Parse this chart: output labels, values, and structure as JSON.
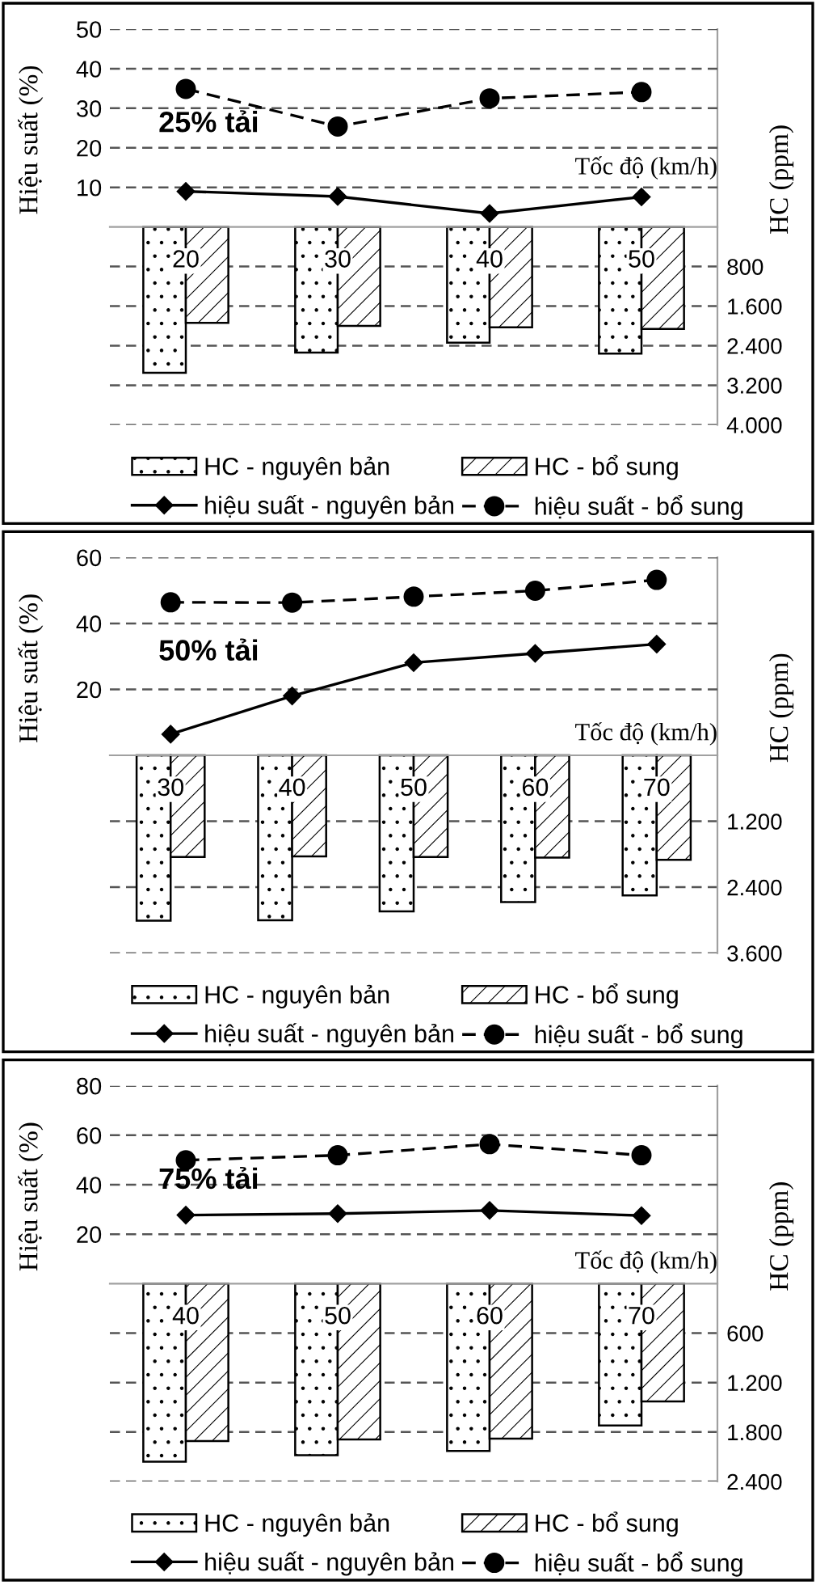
{
  "chart_data": [
    {
      "type": "bar",
      "categories": [
        "20",
        "30",
        "40",
        "50"
      ],
      "xlabel": "Tốc độ (km/h)",
      "ylabel": "Hiệu suất (%)",
      "y2label": "HC (ppm)",
      "annotations": [
        "25% tải"
      ],
      "ylim": [
        -50,
        50
      ],
      "yticks": [
        10,
        20,
        30,
        40,
        50
      ],
      "y2lim": [
        4000,
        -4000
      ],
      "y2ticks": [
        800,
        {
          "value": 1600,
          "label": "1.600"
        },
        {
          "value": 2400,
          "label": "2.400"
        },
        {
          "value": 3200,
          "label": "3.200"
        },
        {
          "value": 4000,
          "label": "4.000"
        }
      ],
      "grid": "y",
      "legend": "bottom",
      "series": [
        {
          "name": "HC - nguyên bản",
          "axis": "y2",
          "color": "#000000",
          "values": [
            2950,
            2540,
            2340,
            2560
          ]
        },
        {
          "name": "HC - bổ sung",
          "axis": "y2",
          "color": "#000000",
          "values": [
            1940,
            2000,
            2030,
            2060
          ]
        },
        {
          "name": "hiệu suất - nguyên bản",
          "type": "line",
          "color": "#000000",
          "marker": "diamond",
          "line_style": "solid",
          "values": [
            9.0,
            7.7,
            3.4,
            7.6
          ]
        },
        {
          "name": "hiệu suất - bổ sung",
          "type": "line",
          "color": "#000000",
          "marker": "circle",
          "line_style": "dashed",
          "values": [
            34.9,
            25.4,
            32.5,
            34.1
          ]
        }
      ]
    },
    {
      "type": "bar",
      "categories": [
        "30",
        "40",
        "50",
        "60",
        "70"
      ],
      "xlabel": "Tốc độ (km/h)",
      "ylabel": "Hiệu suất (%)",
      "y2label": "HC (ppm)",
      "annotations": [
        "50% tải"
      ],
      "ylim": [
        -60,
        60
      ],
      "yticks": [
        20,
        40,
        60
      ],
      "y2lim": [
        3600,
        -3600
      ],
      "y2ticks": [
        {
          "value": 1200,
          "label": "1.200"
        },
        {
          "value": 2400,
          "label": "2.400"
        },
        {
          "value": 3600,
          "label": "3.600"
        }
      ],
      "grid": "y",
      "legend": "bottom",
      "series": [
        {
          "name": "HC - nguyên bản",
          "axis": "y2",
          "color": "#000000",
          "values": [
            3010,
            3000,
            2840,
            2670,
            2550
          ]
        },
        {
          "name": "HC - bổ sung",
          "axis": "y2",
          "color": "#000000",
          "values": [
            1850,
            1840,
            1850,
            1860,
            1900
          ]
        },
        {
          "name": "hiệu suất - nguyên bản",
          "type": "line",
          "color": "#000000",
          "marker": "diamond",
          "line_style": "solid",
          "values": [
            6.4,
            18.0,
            28.1,
            30.9,
            33.7
          ]
        },
        {
          "name": "hiệu suất - bổ sung",
          "type": "line",
          "color": "#000000",
          "marker": "circle",
          "line_style": "dashed",
          "values": [
            46.4,
            46.3,
            48.1,
            49.9,
            53.2
          ]
        }
      ]
    },
    {
      "type": "bar",
      "categories": [
        "40",
        "50",
        "60",
        "70"
      ],
      "xlabel": "Tốc độ (km/h)",
      "ylabel": "Hiệu suất (%)",
      "y2label": "HC (ppm)",
      "annotations": [
        "75% tải"
      ],
      "ylim": [
        -80,
        80
      ],
      "yticks": [
        20,
        40,
        60,
        80
      ],
      "y2lim": [
        2400,
        -2400
      ],
      "y2ticks": [
        600,
        {
          "value": 1200,
          "label": "1.200"
        },
        {
          "value": 1800,
          "label": "1.800"
        },
        {
          "value": 2400,
          "label": "2.400"
        }
      ],
      "grid": "y",
      "legend": "bottom",
      "series": [
        {
          "name": "HC - nguyên bản",
          "axis": "y2",
          "color": "#000000",
          "values": [
            2160,
            2080,
            2030,
            1720
          ]
        },
        {
          "name": "HC - bổ sung",
          "axis": "y2",
          "color": "#000000",
          "values": [
            1910,
            1890,
            1880,
            1430
          ]
        },
        {
          "name": "hiệu suất - nguyên bản",
          "type": "line",
          "color": "#000000",
          "marker": "diamond",
          "line_style": "solid",
          "values": [
            27.7,
            28.3,
            29.6,
            27.5
          ]
        },
        {
          "name": "hiệu suất - bổ sung",
          "type": "line",
          "color": "#000000",
          "marker": "circle",
          "line_style": "dashed",
          "values": [
            49.9,
            51.9,
            56.4,
            51.9
          ]
        }
      ]
    }
  ]
}
